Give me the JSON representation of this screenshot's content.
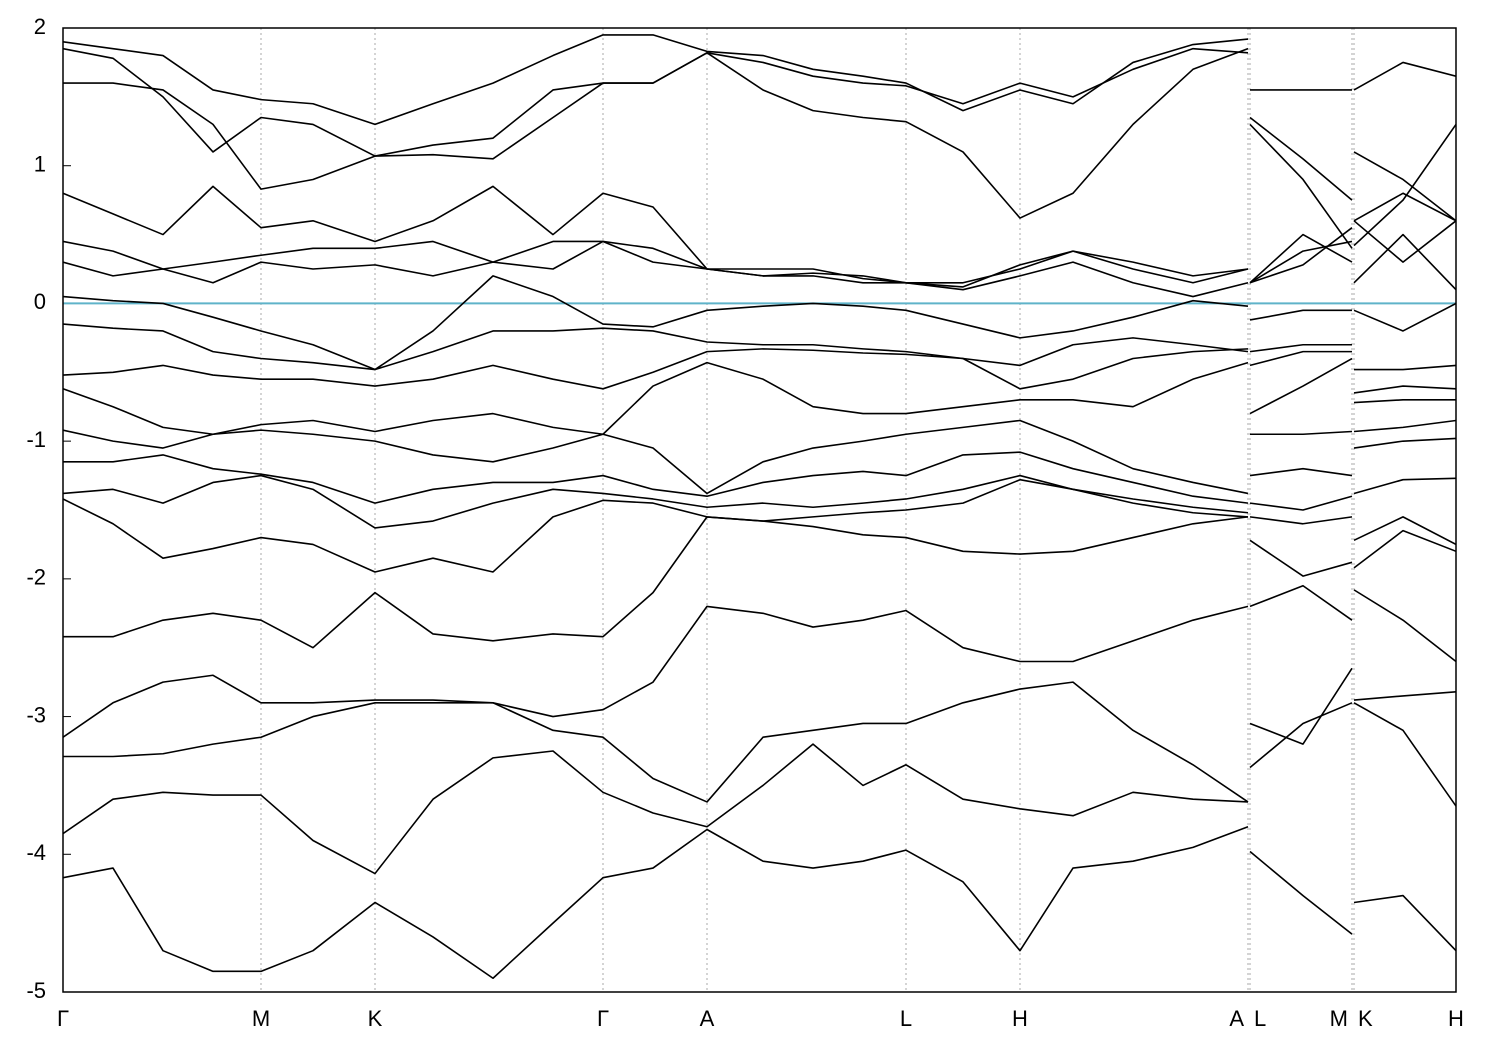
{
  "chart_data": {
    "type": "line",
    "x": [
      0,
      0.5,
      1.0,
      1.5,
      1.98,
      2.5,
      3.12,
      3.7,
      4.3,
      4.9,
      5.4,
      5.9,
      6.44,
      7.0,
      7.5,
      8.0,
      8.43,
      9.0,
      9.57,
      10.1,
      10.7,
      11.3,
      11.85,
      11.86,
      11.87,
      12.4,
      12.89,
      12.9,
      12.91,
      13.4,
      13.93
    ],
    "xlim": [
      0,
      13.93
    ],
    "xticks": [
      {
        "value": 0,
        "label": "Γ"
      },
      {
        "value": 1.98,
        "label": "M"
      },
      {
        "value": 3.12,
        "label": "K"
      },
      {
        "value": 5.4,
        "label": "Γ"
      },
      {
        "value": 6.44,
        "label": "A"
      },
      {
        "value": 8.43,
        "label": "L"
      },
      {
        "value": 9.57,
        "label": "H"
      },
      {
        "value": 11.85,
        "label": "A"
      },
      {
        "value": 11.87,
        "label": "L"
      },
      {
        "value": 12.89,
        "label": "M"
      },
      {
        "value": 12.91,
        "label": "K"
      },
      {
        "value": 13.93,
        "label": "H"
      }
    ],
    "ylim": [
      -5,
      2
    ],
    "yticks": [
      -5,
      -4,
      -3,
      -2,
      -1,
      0,
      1,
      2
    ],
    "fermi_level": 0,
    "fermi_color": "#5fb3c9",
    "grid_color": "#aaaaaa",
    "series": [
      {
        "color": "#000000",
        "values": [
          -4.17,
          -4.1,
          -4.7,
          -4.85,
          -4.85,
          -4.7,
          -4.35,
          -4.6,
          -4.9,
          -4.5,
          -4.17,
          -4.1,
          -3.82,
          -4.05,
          -4.1,
          -4.05,
          -3.97,
          -4.2,
          -4.7,
          -4.1,
          -4.05,
          -3.95,
          -3.8,
          null,
          -3.98,
          -4.3,
          -4.58,
          null,
          -4.35,
          -4.3,
          -4.7
        ]
      },
      {
        "color": "#000000",
        "values": [
          -3.85,
          -3.6,
          -3.55,
          -3.57,
          -3.57,
          -3.9,
          -4.14,
          -3.6,
          -3.3,
          -3.25,
          -3.55,
          -3.7,
          -3.8,
          -3.5,
          -3.2,
          -3.5,
          -3.35,
          -3.6,
          -3.67,
          -3.72,
          -3.55,
          -3.6,
          -3.62,
          null,
          -3.37,
          -3.05,
          -2.9,
          null,
          -2.9,
          -3.1,
          -3.65
        ]
      },
      {
        "color": "#000000",
        "values": [
          -3.29,
          -3.29,
          -3.27,
          -3.2,
          -3.15,
          -3.0,
          -2.9,
          -2.9,
          -2.9,
          -3.1,
          -3.15,
          -3.45,
          -3.62,
          -3.15,
          -3.1,
          -3.05,
          -3.05,
          -2.9,
          -2.8,
          -2.75,
          -3.1,
          -3.35,
          -3.62,
          null,
          -3.05,
          -3.2,
          -2.65,
          null,
          -2.88,
          -2.85,
          -2.82
        ]
      },
      {
        "color": "#000000",
        "values": [
          -3.15,
          -2.9,
          -2.75,
          -2.7,
          -2.9,
          -2.9,
          -2.88,
          -2.88,
          -2.9,
          -3.0,
          -2.95,
          -2.75,
          -2.2,
          -2.25,
          -2.35,
          -2.3,
          -2.23,
          -2.5,
          -2.6,
          -2.6,
          -2.45,
          -2.3,
          -2.2,
          null,
          -2.2,
          -2.05,
          -2.3,
          null,
          -2.08,
          -2.3,
          -2.6
        ]
      },
      {
        "color": "#000000",
        "values": [
          -2.42,
          -2.42,
          -2.3,
          -2.25,
          -2.3,
          -2.5,
          -2.1,
          -2.4,
          -2.45,
          -2.4,
          -2.42,
          -2.1,
          -1.55,
          -1.58,
          -1.62,
          -1.68,
          -1.7,
          -1.8,
          -1.82,
          -1.8,
          -1.7,
          -1.6,
          -1.55,
          null,
          -1.72,
          -1.98,
          -1.88,
          null,
          -1.92,
          -1.65,
          -1.8
        ]
      },
      {
        "color": "#000000",
        "values": [
          -1.42,
          -1.6,
          -1.85,
          -1.78,
          -1.7,
          -1.75,
          -1.95,
          -1.85,
          -1.95,
          -1.55,
          -1.43,
          -1.45,
          -1.55,
          -1.58,
          -1.55,
          -1.52,
          -1.5,
          -1.45,
          -1.28,
          -1.35,
          -1.45,
          -1.52,
          -1.55,
          null,
          -1.55,
          -1.6,
          -1.55,
          null,
          -1.72,
          -1.55,
          -1.75
        ]
      },
      {
        "color": "#000000",
        "values": [
          -1.38,
          -1.35,
          -1.45,
          -1.3,
          -1.25,
          -1.35,
          -1.63,
          -1.58,
          -1.45,
          -1.35,
          -1.38,
          -1.42,
          -1.48,
          -1.45,
          -1.48,
          -1.45,
          -1.42,
          -1.35,
          -1.25,
          -1.35,
          -1.42,
          -1.48,
          -1.52,
          null,
          -1.45,
          -1.5,
          -1.4,
          null,
          -1.38,
          -1.28,
          -1.27
        ]
      },
      {
        "color": "#000000",
        "values": [
          -1.15,
          -1.15,
          -1.1,
          -1.2,
          -1.24,
          -1.3,
          -1.45,
          -1.35,
          -1.3,
          -1.3,
          -1.25,
          -1.35,
          -1.4,
          -1.3,
          -1.25,
          -1.22,
          -1.25,
          -1.1,
          -1.08,
          -1.2,
          -1.3,
          -1.4,
          -1.45,
          null,
          -1.25,
          -1.2,
          -1.25,
          null,
          -1.05,
          -1.0,
          -0.98
        ]
      },
      {
        "color": "#000000",
        "values": [
          -0.92,
          -1.0,
          -1.05,
          -0.95,
          -0.92,
          -0.95,
          -1.0,
          -1.1,
          -1.15,
          -1.05,
          -0.95,
          -1.05,
          -1.38,
          -1.15,
          -1.05,
          -1.0,
          -0.95,
          -0.9,
          -0.85,
          -1.0,
          -1.2,
          -1.3,
          -1.38,
          null,
          -0.95,
          -0.95,
          -0.93,
          null,
          -0.93,
          -0.9,
          -0.85
        ]
      },
      {
        "color": "#000000",
        "values": [
          -0.62,
          -0.75,
          -0.9,
          -0.95,
          -0.88,
          -0.85,
          -0.93,
          -0.85,
          -0.8,
          -0.9,
          -0.95,
          -0.6,
          -0.43,
          -0.55,
          -0.75,
          -0.8,
          -0.8,
          -0.75,
          -0.7,
          -0.7,
          -0.75,
          -0.55,
          -0.43,
          null,
          -0.8,
          -0.6,
          -0.4,
          null,
          -0.72,
          -0.7,
          -0.7
        ]
      },
      {
        "color": "#000000",
        "values": [
          -0.52,
          -0.5,
          -0.45,
          -0.52,
          -0.55,
          -0.55,
          -0.6,
          -0.55,
          -0.45,
          -0.55,
          -0.62,
          -0.5,
          -0.35,
          -0.33,
          -0.34,
          -0.36,
          -0.37,
          -0.4,
          -0.45,
          -0.3,
          -0.25,
          -0.3,
          -0.35,
          null,
          -0.45,
          -0.35,
          -0.35,
          null,
          -0.65,
          -0.6,
          -0.62
        ]
      },
      {
        "color": "#000000",
        "values": [
          -0.15,
          -0.18,
          -0.2,
          -0.35,
          -0.4,
          -0.43,
          -0.48,
          -0.35,
          -0.2,
          -0.2,
          -0.18,
          -0.2,
          -0.28,
          -0.3,
          -0.3,
          -0.33,
          -0.35,
          -0.4,
          -0.62,
          -0.55,
          -0.4,
          -0.35,
          -0.33,
          null,
          -0.35,
          -0.3,
          -0.3,
          null,
          -0.48,
          -0.48,
          -0.45
        ]
      },
      {
        "color": "#000000",
        "values": [
          0.05,
          0.02,
          0.0,
          -0.1,
          -0.2,
          -0.3,
          -0.48,
          -0.2,
          0.2,
          0.05,
          -0.15,
          -0.17,
          -0.05,
          -0.02,
          0.0,
          -0.02,
          -0.05,
          -0.15,
          -0.25,
          -0.2,
          -0.1,
          0.02,
          -0.02,
          null,
          -0.12,
          -0.05,
          -0.05,
          null,
          -0.05,
          -0.2,
          0.0
        ]
      },
      {
        "color": "#000000",
        "values": [
          0.3,
          0.2,
          0.25,
          0.15,
          0.3,
          0.25,
          0.28,
          0.2,
          0.3,
          0.25,
          0.45,
          0.3,
          0.25,
          0.2,
          0.2,
          0.15,
          0.15,
          0.1,
          0.2,
          0.3,
          0.15,
          0.05,
          0.15,
          null,
          0.15,
          0.38,
          0.45,
          null,
          0.15,
          0.5,
          0.1
        ]
      },
      {
        "color": "#000000",
        "values": [
          0.45,
          0.38,
          0.25,
          0.3,
          0.35,
          0.4,
          0.4,
          0.45,
          0.3,
          0.45,
          0.45,
          0.4,
          0.25,
          0.2,
          0.22,
          0.2,
          0.15,
          0.12,
          0.28,
          0.38,
          0.25,
          0.15,
          0.25,
          null,
          0.15,
          0.28,
          0.55,
          null,
          0.6,
          0.3,
          0.6
        ]
      },
      {
        "color": "#000000",
        "values": [
          0.8,
          0.65,
          0.5,
          0.85,
          0.55,
          0.6,
          0.45,
          0.6,
          0.85,
          0.5,
          0.8,
          0.7,
          0.25,
          0.25,
          0.25,
          0.18,
          0.15,
          0.15,
          0.25,
          0.38,
          0.3,
          0.2,
          0.25,
          null,
          0.15,
          0.5,
          0.3,
          null,
          0.6,
          0.8,
          0.6
        ]
      },
      {
        "color": "#000000",
        "values": [
          1.6,
          1.6,
          1.55,
          1.3,
          0.83,
          0.9,
          1.07,
          1.08,
          1.05,
          1.35,
          1.6,
          1.6,
          1.82,
          1.75,
          1.65,
          1.6,
          1.58,
          1.45,
          1.6,
          1.5,
          1.7,
          1.85,
          1.82,
          null,
          1.3,
          0.9,
          0.4,
          null,
          1.1,
          0.9,
          0.6
        ]
      },
      {
        "color": "#000000",
        "values": [
          1.85,
          1.78,
          1.5,
          1.1,
          1.35,
          1.3,
          1.07,
          1.15,
          1.2,
          1.55,
          1.6,
          1.6,
          1.82,
          1.55,
          1.4,
          1.35,
          1.32,
          1.1,
          0.62,
          0.8,
          1.3,
          1.7,
          1.85,
          null,
          1.35,
          1.05,
          0.75,
          null,
          0.42,
          0.75,
          1.3
        ]
      },
      {
        "color": "#000000",
        "values": [
          1.9,
          1.85,
          1.8,
          1.55,
          1.48,
          1.45,
          1.3,
          1.45,
          1.6,
          1.8,
          1.95,
          1.95,
          1.83,
          1.8,
          1.7,
          1.65,
          1.6,
          1.4,
          1.55,
          1.45,
          1.75,
          1.88,
          1.92,
          null,
          1.55,
          1.55,
          1.55,
          null,
          1.55,
          1.75,
          1.65
        ]
      }
    ]
  }
}
